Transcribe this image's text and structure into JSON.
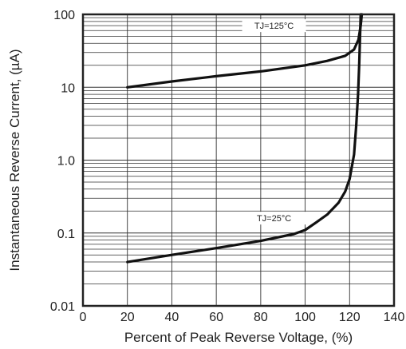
{
  "chart_data": {
    "type": "line",
    "xlabel": "Percent of Peak Reverse Voltage, (%)",
    "ylabel": "Instantaneous Reverse Current, (µA)",
    "x_scale": "linear",
    "y_scale": "log",
    "xlim": [
      0,
      140
    ],
    "ylim": [
      0.01,
      100
    ],
    "x_ticks": [
      "0",
      "20",
      "40",
      "60",
      "80",
      "100",
      "120",
      "140"
    ],
    "y_ticks": [
      "0.01",
      "0.1",
      "1.0",
      "10",
      "100"
    ],
    "grid": true,
    "series": [
      {
        "name": "TJ=125°C",
        "label_text": "TJ=125°C",
        "x": [
          20,
          40,
          60,
          80,
          100,
          110,
          118,
          122,
          124,
          125,
          125.5
        ],
        "y": [
          10,
          12,
          14.2,
          16.5,
          20,
          23,
          27,
          33,
          45,
          70,
          100
        ]
      },
      {
        "name": "TJ=25°C",
        "label_text": "TJ=25°C",
        "x": [
          20,
          40,
          60,
          80,
          95,
          100,
          105,
          110,
          115,
          118,
          120,
          122,
          123,
          123.8,
          124.3,
          124.7,
          125
        ],
        "y": [
          0.04,
          0.05,
          0.062,
          0.078,
          0.097,
          0.11,
          0.14,
          0.18,
          0.26,
          0.37,
          0.55,
          1.2,
          3.0,
          8.0,
          20,
          50,
          100
        ]
      }
    ]
  }
}
